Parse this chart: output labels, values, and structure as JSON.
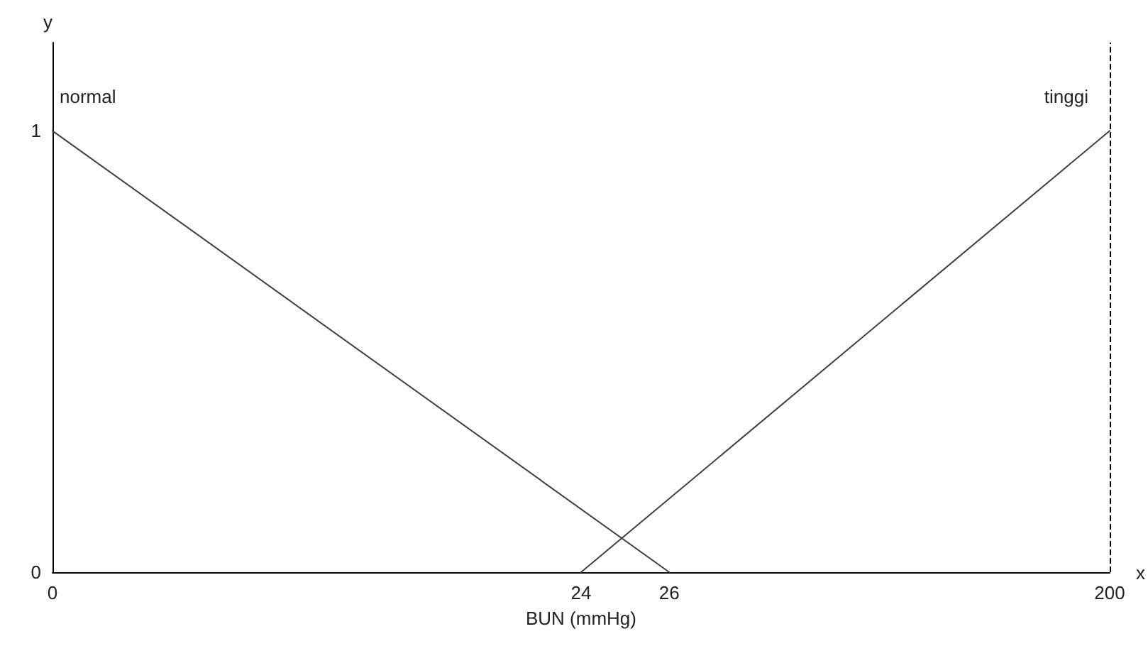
{
  "chart_data": {
    "type": "line",
    "xlabel": "BUN (mmHg)",
    "ylabel": "y",
    "annotations": [
      "x"
    ],
    "categories": [
      "0",
      null,
      null,
      null,
      null,
      null,
      "24",
      "26",
      null,
      null,
      null,
      null,
      "200"
    ],
    "series": [
      {
        "name": "normal",
        "color": "#404040",
        "x": [
          "0",
          "26"
        ],
        "values": [
          1,
          0
        ]
      },
      {
        "name": "tinggi",
        "color": "#404040",
        "x": [
          "24",
          "200"
        ],
        "values": [
          0,
          1
        ]
      }
    ],
    "ylim": [
      0,
      1.2
    ],
    "yticks": [
      0,
      1
    ],
    "ref_lines": [
      {
        "axis": "x",
        "value": "200",
        "line_style": "dashed",
        "color": "#000000"
      }
    ],
    "grid": false,
    "legend": false,
    "marker": "none",
    "line_style": "solid"
  }
}
